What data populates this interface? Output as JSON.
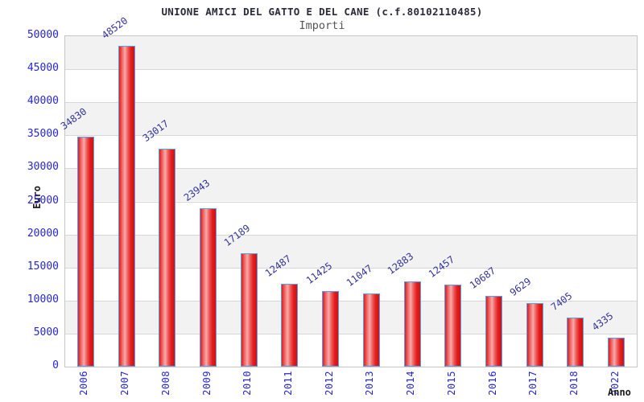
{
  "chart_data": {
    "type": "bar",
    "title": "UNIONE AMICI DEL GATTO E DEL CANE (c.f.80102110485)",
    "subtitle": "Importi",
    "xlabel": "Anno",
    "ylabel": "Euro",
    "categories": [
      "2006",
      "2007",
      "2008",
      "2009",
      "2010",
      "2011",
      "2012",
      "2013",
      "2014",
      "2015",
      "2016",
      "2017",
      "2018",
      "2022"
    ],
    "values": [
      34830,
      48520,
      33017,
      23943,
      17189,
      12487,
      11425,
      11047,
      12883,
      12457,
      10687,
      9629,
      7405,
      4335
    ],
    "ylim": [
      0,
      50000
    ],
    "ytick_step": 5000,
    "grid": true,
    "legend_position": "none",
    "colors": {
      "bar_fill": "#e31b1b",
      "bar_fill_dark": "#d21212",
      "bar_highlight": "#f7abab",
      "bar_border": "#55a1f1",
      "axis_text": "#2626d2",
      "value_label": "#333399",
      "title": "#2a2a3a",
      "subtitle": "#555555",
      "band_dark": "#f2f2f2",
      "band_light": "#ffffff",
      "gridline": "#d7d7d7"
    }
  }
}
